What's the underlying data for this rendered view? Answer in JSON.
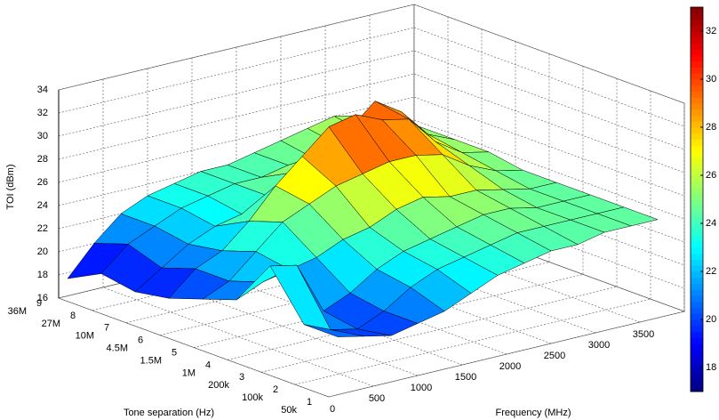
{
  "chart_data": {
    "type": "surface3d",
    "xlabel": "Frequency (MHz)",
    "ylabel": "Tone separation (Hz)",
    "zlabel": "TOI (dBm)",
    "x": [
      100,
      400,
      700,
      1000,
      1300,
      1600,
      1900,
      2200,
      2500,
      2800,
      3100,
      3400,
      3700
    ],
    "y": [
      1,
      2,
      3,
      4,
      5,
      6,
      7,
      8,
      9
    ],
    "y_categories": [
      "50k",
      "100k",
      "200k",
      "1M",
      "1.5M",
      "4.5M",
      "10M",
      "27M",
      "36M"
    ],
    "z": [
      [
        21,
        20.5,
        20,
        20.5,
        21,
        22,
        23,
        23.5,
        24,
        24,
        24.5,
        24.5,
        24.5
      ],
      [
        21,
        20,
        19.5,
        20.5,
        22,
        23,
        23.5,
        24,
        24.5,
        24.5,
        24.5,
        24.5,
        24.5
      ],
      [
        25,
        24.5,
        20,
        21,
        22.5,
        23.5,
        24,
        24.5,
        25,
        25,
        24.5,
        24.5,
        24.5
      ],
      [
        21,
        22,
        22.5,
        23,
        24,
        24.5,
        25.5,
        26,
        25.5,
        25.5,
        25,
        24.5,
        24.5
      ],
      [
        20,
        21,
        23,
        25,
        26,
        27,
        27.5,
        28,
        28,
        27.5,
        26,
        25,
        24.5
      ],
      [
        19,
        21,
        22,
        24,
        26.5,
        28.5,
        30.5,
        31,
        30,
        29.5,
        27,
        25.5,
        25
      ],
      [
        18.5,
        20,
        21.5,
        22.5,
        23,
        24,
        25.5,
        26.5,
        28,
        30,
        28.5,
        26,
        25
      ],
      [
        19,
        21,
        22,
        23,
        23.5,
        24,
        24,
        24.5,
        24.5,
        25,
        25.5,
        25,
        25
      ],
      [
        17.5,
        20,
        22,
        23,
        23.5,
        24,
        24,
        24.5,
        25,
        25.5,
        26,
        25.5,
        25
      ]
    ],
    "xlim": [
      0,
      4000
    ],
    "ylim": [
      1,
      9
    ],
    "zlim": [
      16,
      34
    ],
    "xticks": [
      0,
      500,
      1000,
      1500,
      2000,
      2500,
      3000,
      3500
    ],
    "yticks": [
      1,
      2,
      3,
      4,
      5,
      6,
      7,
      8,
      9
    ],
    "zticks": [
      16,
      18,
      20,
      22,
      24,
      26,
      28,
      30,
      32,
      34
    ],
    "colormap": "jet",
    "clim": [
      17,
      33
    ],
    "cticks": [
      18,
      20,
      22,
      24,
      26,
      28,
      30,
      32
    ],
    "grid": true
  }
}
